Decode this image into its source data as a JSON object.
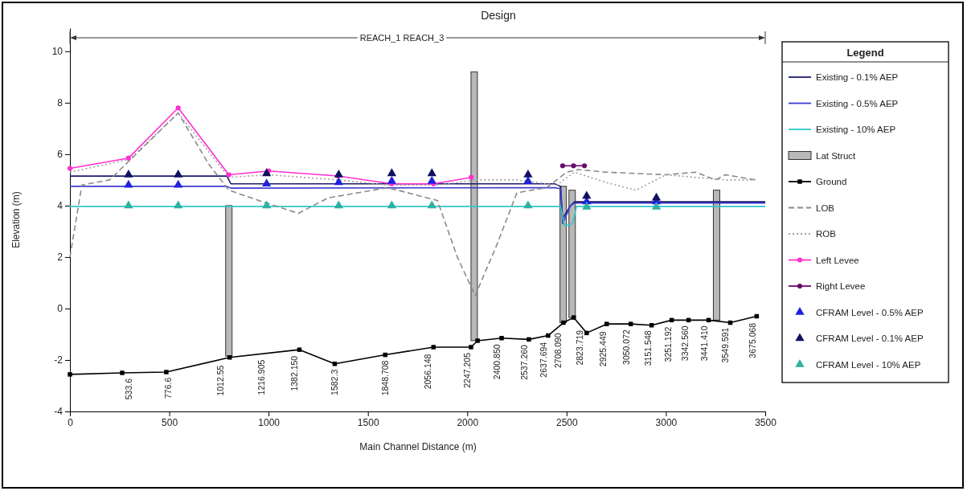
{
  "chart_data": {
    "type": "line",
    "title": "Design",
    "xlabel": "Main Channel Distance (m)",
    "ylabel": "Elevation (m)",
    "legend_title": "Legend",
    "xlim": [
      0,
      3500
    ],
    "ylim": [
      -4,
      10.9
    ],
    "xticks": [
      0,
      500,
      1000,
      1500,
      2000,
      2500,
      3000,
      3500
    ],
    "yticks": [
      -4,
      -2,
      0,
      2,
      4,
      6,
      8,
      10
    ],
    "grid": false,
    "legend": "right",
    "annotations": [
      "REACH_1 REACH_3",
      {
        "text": "533.6",
        "x": 295,
        "y": -2.5
      },
      {
        "text": "776.6",
        "x": 493,
        "y": -2.46
      },
      {
        "text": "1012.55",
        "x": 755,
        "y": -1.99
      },
      {
        "text": "1216.905",
        "x": 961,
        "y": -1.77
      },
      {
        "text": "1382.150",
        "x": 1127,
        "y": -1.62
      },
      {
        "text": "1582.3",
        "x": 1333,
        "y": -2.15
      },
      {
        "text": "1848.708",
        "x": 1587,
        "y": -1.8
      },
      {
        "text": "2056.148",
        "x": 1801,
        "y": -1.55
      },
      {
        "text": "2247.205",
        "x": 1999,
        "y": -1.5
      },
      {
        "text": "2400.850",
        "x": 2149,
        "y": -1.17
      },
      {
        "text": "2537.260",
        "x": 2286,
        "y": -1.19
      },
      {
        "text": "2637.694",
        "x": 2383,
        "y": -1.09
      },
      {
        "text": "2708.090",
        "x": 2456,
        "y": -0.73
      },
      {
        "text": "2823.719",
        "x": 2565,
        "y": -0.62
      },
      {
        "text": "2925.449",
        "x": 2682,
        "y": -0.67
      },
      {
        "text": "3050.072",
        "x": 2799,
        "y": -0.6
      },
      {
        "text": "3151.548",
        "x": 2908,
        "y": -0.64
      },
      {
        "text": "3251.192",
        "x": 3009,
        "y": -0.49
      },
      {
        "text": "3342.560",
        "x": 3094,
        "y": -0.45
      },
      {
        "text": "3441.410",
        "x": 3191,
        "y": -0.45
      },
      {
        "text": "3549.591",
        "x": 3296,
        "y": -0.52
      },
      {
        "text": "3675.068",
        "x": 3437,
        "y": -0.34
      }
    ],
    "series": [
      {
        "name": "Existing - 0.1% AEP",
        "color": "#1c1c70",
        "line_style": "solid",
        "x": [
          0,
          790,
          810,
          2440,
          2470,
          2480,
          2520,
          2540,
          3500
        ],
        "values": [
          5.15,
          5.15,
          4.85,
          4.85,
          4.75,
          3.5,
          4.0,
          4.15,
          4.15
        ]
      },
      {
        "name": "Existing - 0.5% AEP",
        "color": "#3c3cd0",
        "line_style": "solid",
        "x": [
          0,
          790,
          810,
          2440,
          2470,
          2480,
          2520,
          2540,
          3500
        ],
        "values": [
          4.75,
          4.75,
          4.68,
          4.7,
          4.65,
          3.3,
          4.0,
          4.1,
          4.1
        ]
      },
      {
        "name": "Existing - 10% AEP",
        "color": "#30c8c8",
        "line_style": "solid",
        "x": [
          0,
          2470,
          2490,
          2530,
          2550,
          3500
        ],
        "values": [
          3.97,
          3.97,
          3.2,
          3.3,
          3.97,
          3.97
        ]
      },
      {
        "name": "Lat Struct",
        "type": "bar",
        "color": "#b8b8b8",
        "x": [
          800,
          2035,
          2483,
          2528,
          3255
        ],
        "base": [
          -1.85,
          -1.25,
          -0.55,
          -0.35,
          -0.45
        ],
        "values": [
          5.85,
          10.45,
          5.3,
          4.95,
          5.05
        ]
      },
      {
        "name": "Ground",
        "color": "#000000",
        "line_style": "solid",
        "marker": "square",
        "x": [
          0,
          263,
          485,
          804,
          1155,
          1333,
          1587,
          1830,
          2019,
          2052,
          2173,
          2310,
          2407,
          2484,
          2536,
          2601,
          2702,
          2823,
          2928,
          3029,
          3114,
          3215,
          3324,
          3457
        ],
        "values": [
          -2.56,
          -2.5,
          -2.47,
          -1.9,
          -1.6,
          -2.15,
          -1.8,
          -1.5,
          -1.5,
          -1.25,
          -1.15,
          -1.2,
          -1.05,
          -0.55,
          -0.35,
          -0.95,
          -0.6,
          -0.6,
          -0.65,
          -0.45,
          -0.45,
          -0.45,
          -0.55,
          -0.3
        ]
      },
      {
        "name": "LOB",
        "color": "#8a8a8a",
        "line_style": "dashed",
        "x": [
          0,
          60,
          200,
          545,
          700,
          800,
          950,
          1150,
          1300,
          1600,
          1850,
          1950,
          2040,
          2150,
          2250,
          2400,
          2500,
          2560,
          2700,
          2850,
          3000,
          3150,
          3250,
          3300,
          3450
        ],
        "values": [
          2.0,
          4.8,
          5.0,
          7.6,
          5.6,
          4.6,
          4.2,
          3.7,
          4.3,
          4.7,
          4.2,
          2.0,
          0.5,
          2.5,
          4.5,
          4.7,
          5.3,
          5.4,
          5.3,
          5.25,
          5.2,
          5.3,
          5.0,
          5.2,
          5.0
        ]
      },
      {
        "name": "ROB",
        "color": "#a0a0a0",
        "line_style": "dotted",
        "x": [
          0,
          300,
          545,
          800,
          1000,
          1350,
          1600,
          1850,
          2050,
          2250,
          2450,
          2540,
          2700,
          2850,
          3000,
          3150,
          3300,
          3450
        ],
        "values": [
          5.3,
          5.8,
          7.6,
          5.1,
          5.2,
          5.0,
          4.8,
          4.8,
          5.0,
          5.0,
          4.8,
          5.3,
          4.9,
          4.6,
          5.2,
          5.1,
          5.0,
          5.0
        ]
      },
      {
        "name": "Left Levee",
        "color": "#ff30d0",
        "line_style": "solid",
        "marker": "circle",
        "x": [
          0,
          295,
          545,
          800,
          1000,
          1350,
          1620,
          1830,
          2020
        ],
        "values": [
          5.45,
          5.85,
          7.8,
          5.2,
          5.35,
          5.15,
          4.85,
          4.85,
          5.1
        ]
      },
      {
        "name": "Right Levee",
        "color": "#6a0a6a",
        "line_style": "solid",
        "marker": "circle",
        "x": [
          2480,
          2535,
          2590
        ],
        "values": [
          5.55,
          5.55,
          5.55
        ]
      },
      {
        "name": "CFRAM Level - 0.5% AEP",
        "type": "scatter",
        "color": "#2020e0",
        "marker": "triangle",
        "x": [
          295,
          545,
          990,
          1353,
          1620,
          1822,
          2306,
          2601,
          2952
        ],
        "values": [
          4.8,
          4.8,
          4.85,
          4.9,
          4.95,
          4.95,
          4.95,
          4.15,
          4.15
        ]
      },
      {
        "name": "CFRAM Level - 0.1% AEP",
        "type": "scatter",
        "color": "#101060",
        "marker": "triangle",
        "x": [
          295,
          545,
          990,
          1353,
          1620,
          1822,
          2306,
          2601,
          2952
        ],
        "values": [
          5.2,
          5.2,
          5.25,
          5.2,
          5.25,
          5.25,
          5.2,
          4.37,
          4.3
        ]
      },
      {
        "name": "CFRAM Level - 10% AEP",
        "type": "scatter",
        "color": "#30b0a0",
        "marker": "triangle",
        "x": [
          295,
          545,
          990,
          1353,
          1620,
          1822,
          2306,
          2601,
          2952
        ],
        "values": [
          4.0,
          4.0,
          4.0,
          4.0,
          4.0,
          4.0,
          4.0,
          3.95,
          3.95
        ]
      }
    ]
  }
}
